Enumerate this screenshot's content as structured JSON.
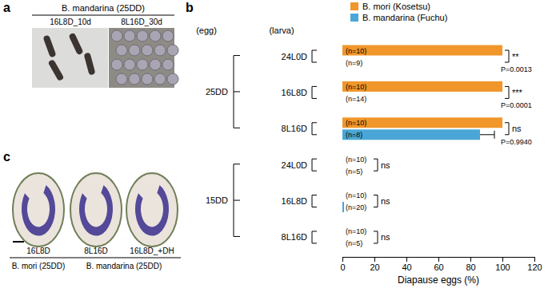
{
  "panel_labels": [
    "a",
    "b",
    "c"
  ],
  "panel_a": {
    "title": "B. mandarina (25DD)",
    "captions": [
      "16L8D_10d",
      "8L16D_30d"
    ]
  },
  "panel_c": {
    "groups": [
      {
        "label": "B. mori (25DD)",
        "captions": [
          "16L8D"
        ]
      },
      {
        "label": "B. mandarina (25DD)",
        "captions": [
          "8L16D",
          "16L8D_+DH"
        ]
      }
    ]
  },
  "chart_data": {
    "type": "bar",
    "orientation": "horizontal",
    "row_headers": [
      "(egg)",
      "(larva)"
    ],
    "egg_conditions": [
      "25DD",
      "25DD",
      "25DD",
      "15DD",
      "15DD",
      "15DD"
    ],
    "categories": [
      "24L0D",
      "16L8D",
      "8L16D",
      "24L0D",
      "16L8D",
      "8L16D"
    ],
    "x_label": "Diapause eggs (%)",
    "xlim": [
      0,
      120
    ],
    "xticks": [
      0,
      20,
      40,
      60,
      80,
      100,
      120
    ],
    "legend": "top",
    "series": [
      {
        "name": "B. mori (Kosetsu)",
        "color": "#f0962a",
        "values": [
          100,
          100,
          100,
          0,
          0,
          0
        ],
        "n_labels": [
          "(n=10)",
          "(n=10)",
          "(n=10)",
          "(n=10)",
          "(n=10)",
          "(n=10)"
        ]
      },
      {
        "name": "B. mandarina (Fuchu)",
        "color": "#4aa6d6",
        "values": [
          0,
          0,
          86,
          0,
          1,
          0
        ],
        "errors": [
          null,
          null,
          9,
          null,
          null,
          null
        ],
        "n_labels": [
          "(n=9)",
          "(n=14)",
          "(n=8)",
          "(n=5)",
          "(n=20)",
          "(n=5)"
        ]
      }
    ],
    "significance": [
      {
        "category": 0,
        "label": "**",
        "p": "P=0.0013"
      },
      {
        "category": 1,
        "label": "***",
        "p": "P=0.0001"
      },
      {
        "category": 2,
        "label": "ns",
        "p": "P=0.9940"
      },
      {
        "category": 3,
        "label": "ns"
      },
      {
        "category": 4,
        "label": "ns"
      },
      {
        "category": 5,
        "label": "ns"
      }
    ]
  }
}
